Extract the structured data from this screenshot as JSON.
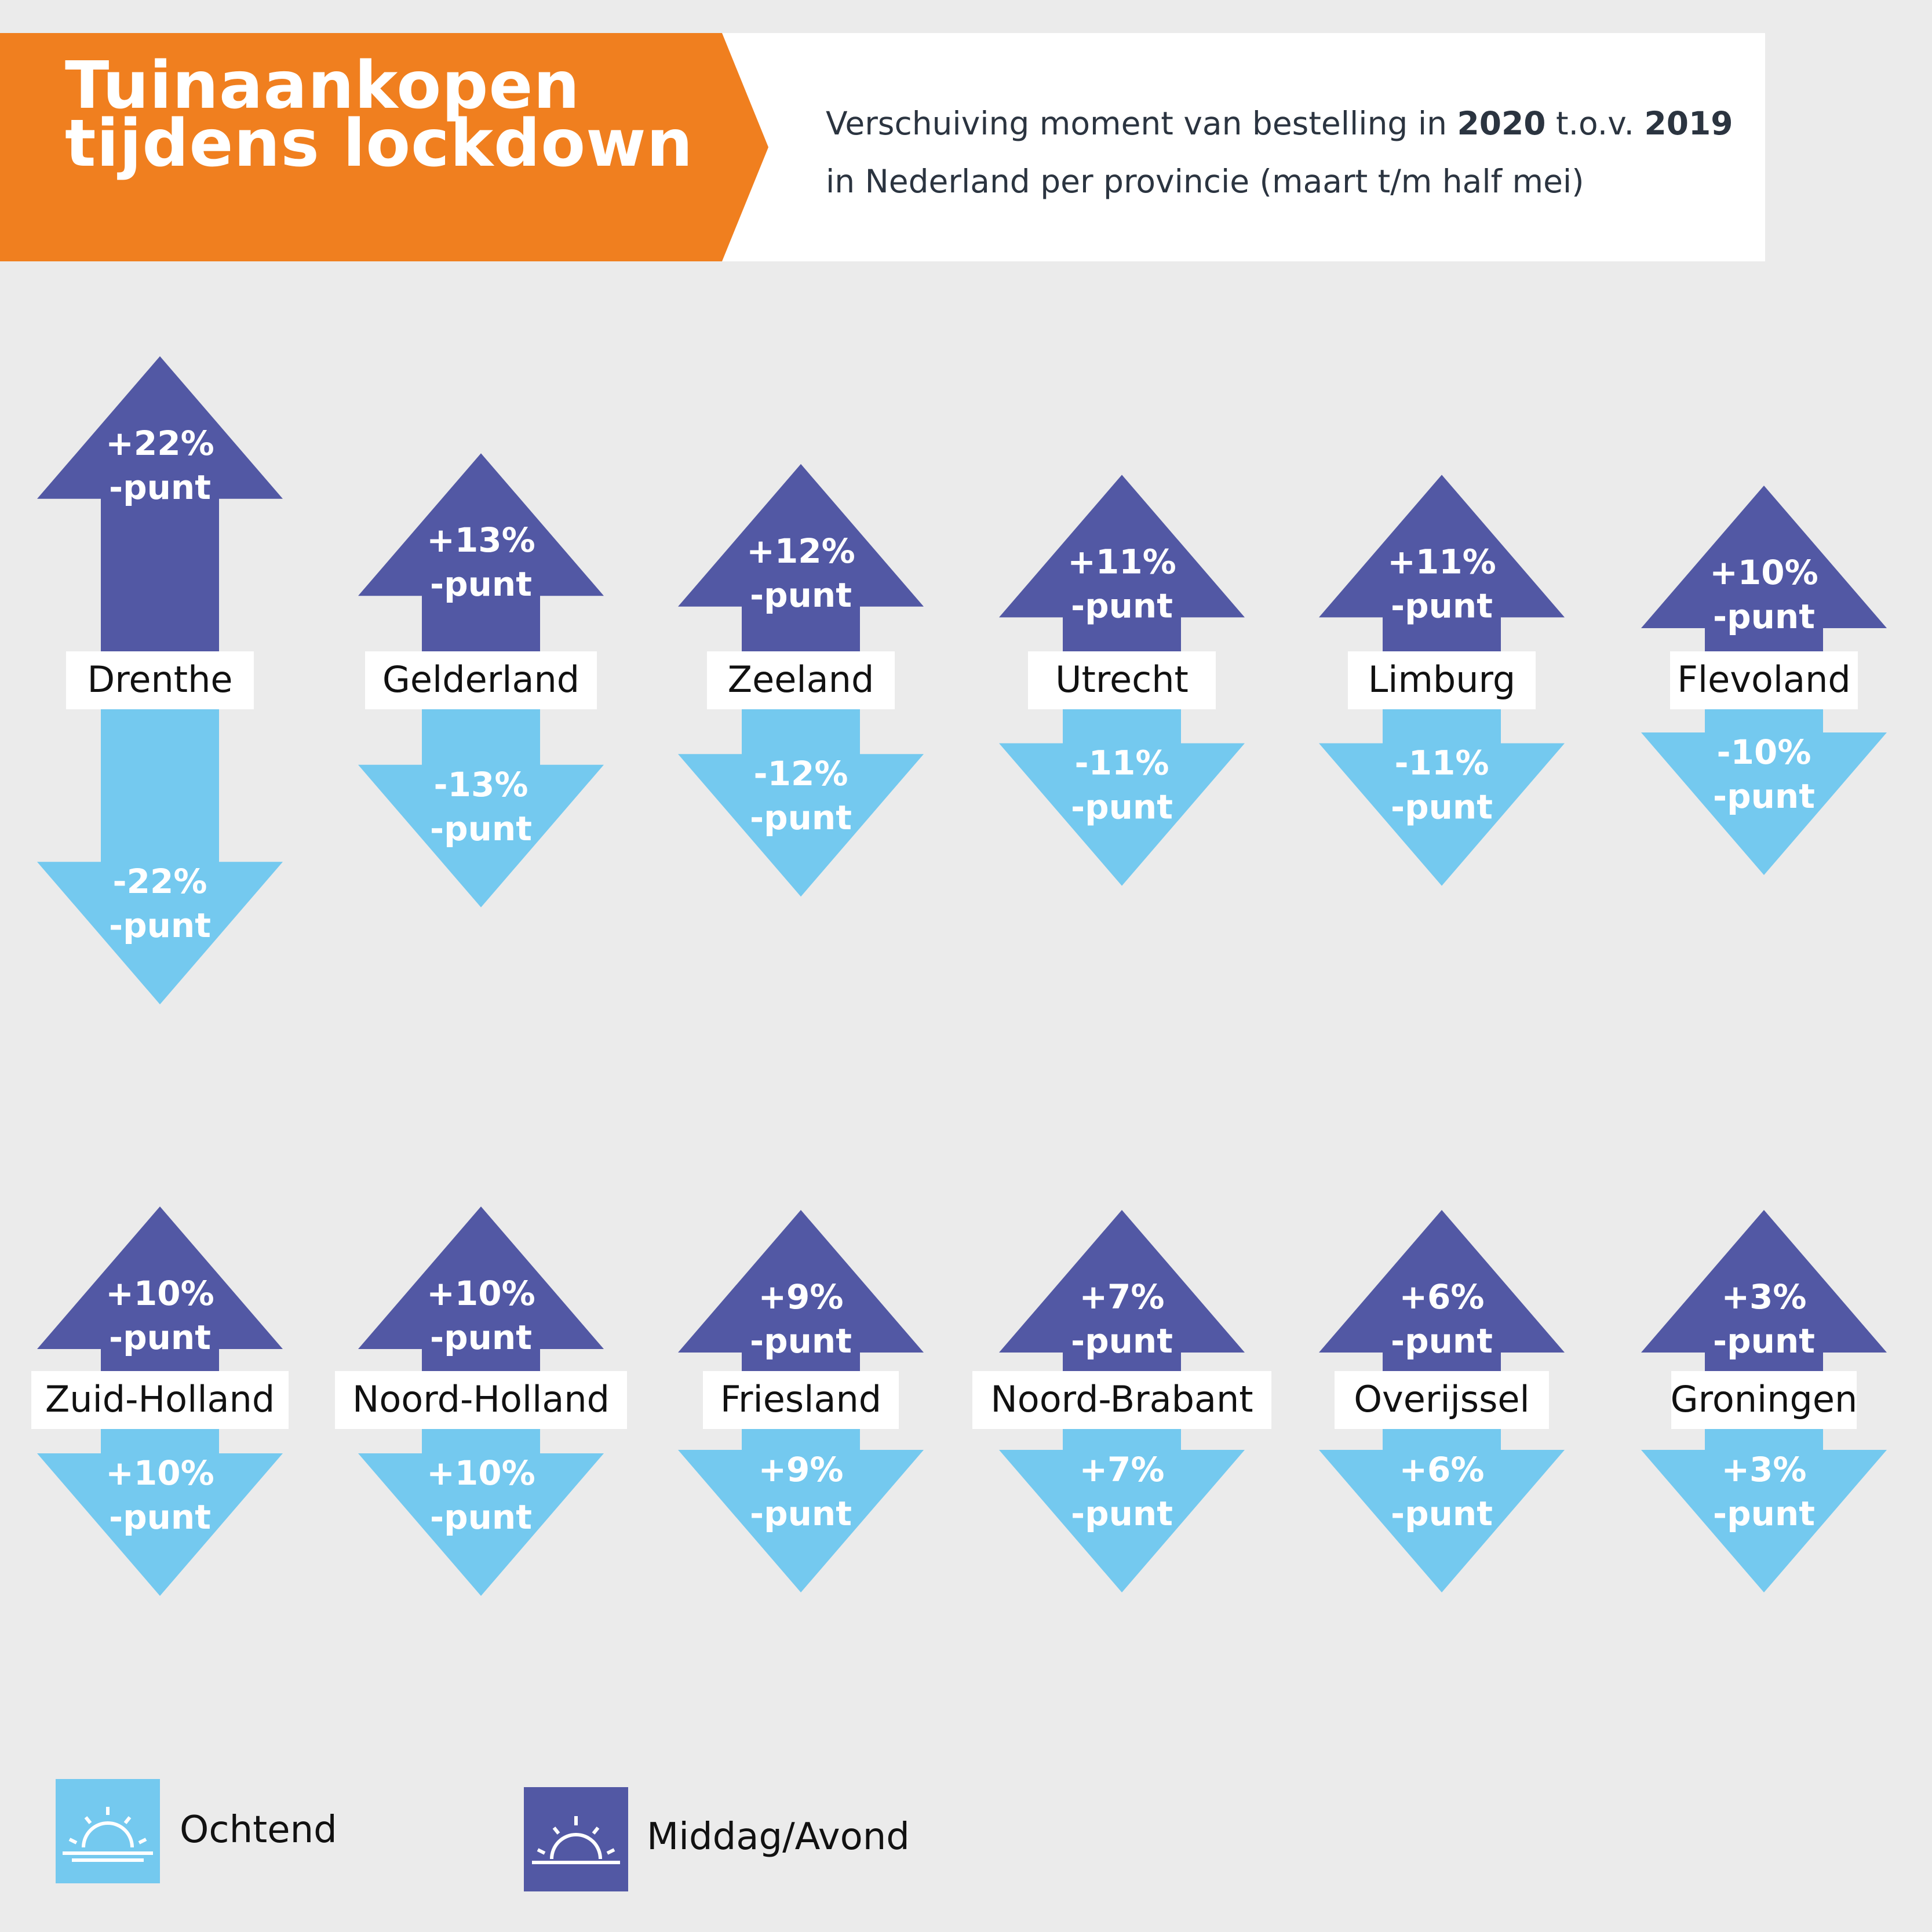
{
  "header": {
    "title": "Tuinaankopen\ntijdens lockdown",
    "subtitle": {
      "p1": "Verschuiving moment van bestelling in ",
      "y1": "2020",
      "p2": " t.o.v. ",
      "y2": "2019",
      "p3": "in Nederland per provincie (maart t/m half mei)"
    }
  },
  "colors": {
    "orange": "#f07f1f",
    "middag_avond": "#5258a4",
    "ochtend": "#74c9ef",
    "label_bg": "#ffffff",
    "text_dark": "#111111",
    "background": "#ebebeb"
  },
  "legend": {
    "ochtend": {
      "label": "Ochtend",
      "icon": "sunrise-icon"
    },
    "middag_avond": {
      "label": "Middag/Avond",
      "icon": "sunset-icon"
    }
  },
  "chart_data": {
    "type": "bar",
    "unit_suffix": "-punt",
    "series_keys": [
      "middag_avond",
      "ochtend"
    ],
    "provinces": [
      {
        "name": "Drenthe",
        "middag_avond": "+22%",
        "ochtend": "-22%",
        "middag_value": 22,
        "ochtend_value": -22
      },
      {
        "name": "Gelderland",
        "middag_avond": "+13%",
        "ochtend": "-13%",
        "middag_value": 13,
        "ochtend_value": -13
      },
      {
        "name": "Zeeland",
        "middag_avond": "+12%",
        "ochtend": "-12%",
        "middag_value": 12,
        "ochtend_value": -12
      },
      {
        "name": "Utrecht",
        "middag_avond": "+11%",
        "ochtend": "-11%",
        "middag_value": 11,
        "ochtend_value": -11
      },
      {
        "name": "Limburg",
        "middag_avond": "+11%",
        "ochtend": "-11%",
        "middag_value": 11,
        "ochtend_value": -11
      },
      {
        "name": "Flevoland",
        "middag_avond": "+10%",
        "ochtend": "-10%",
        "middag_value": 10,
        "ochtend_value": -10
      },
      {
        "name": "Zuid-Holland",
        "middag_avond": "+10%",
        "ochtend": "+10%",
        "middag_value": 10,
        "ochtend_value": 10
      },
      {
        "name": "Noord-Holland",
        "middag_avond": "+10%",
        "ochtend": "+10%",
        "middag_value": 10,
        "ochtend_value": 10
      },
      {
        "name": "Friesland",
        "middag_avond": "+9%",
        "ochtend": "+9%",
        "middag_value": 9,
        "ochtend_value": 9
      },
      {
        "name": "Noord-Brabant",
        "middag_avond": "+7%",
        "ochtend": "+7%",
        "middag_value": 7,
        "ochtend_value": 7
      },
      {
        "name": "Overijssel",
        "middag_avond": "+6%",
        "ochtend": "+6%",
        "middag_value": 6,
        "ochtend_value": 6
      },
      {
        "name": "Groningen",
        "middag_avond": "+3%",
        "ochtend": "+3%",
        "middag_value": 3,
        "ochtend_value": 3
      }
    ]
  }
}
